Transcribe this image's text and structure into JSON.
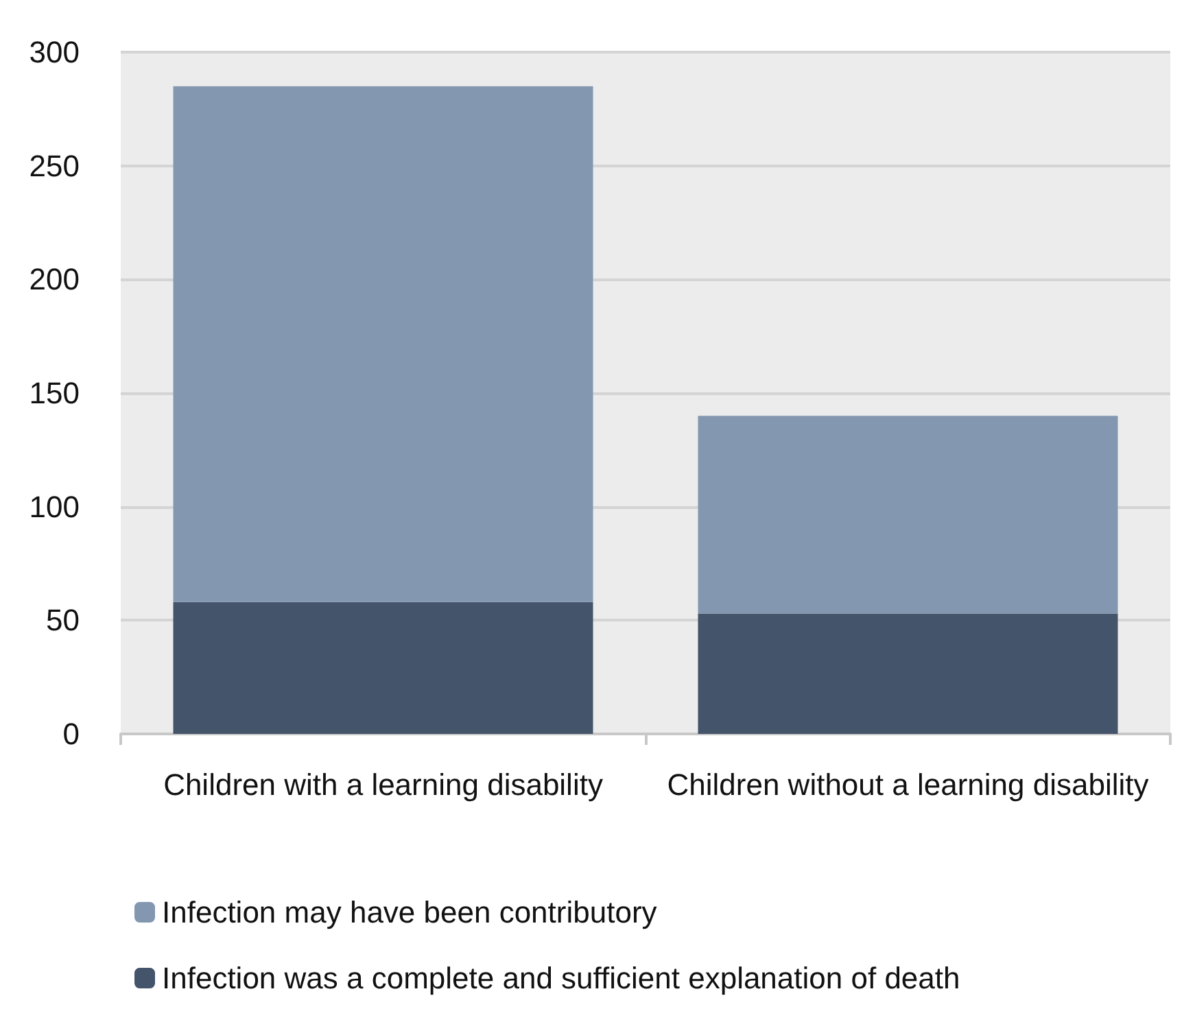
{
  "chart_data": {
    "type": "bar",
    "stacked": true,
    "categories": [
      "Children with a learning disability",
      "Children without a learning disability"
    ],
    "series": [
      {
        "name": "Infection was a complete and sufficient explanation of death",
        "color": "#44546a",
        "values": [
          58,
          53
        ]
      },
      {
        "name": "Infection may have been contributory",
        "color": "#8497b0",
        "values": [
          227,
          87
        ]
      }
    ],
    "ylim": [
      0,
      300
    ],
    "yticks": [
      0,
      50,
      100,
      150,
      200,
      250,
      300
    ],
    "grid": "y",
    "legend": "bottom"
  }
}
